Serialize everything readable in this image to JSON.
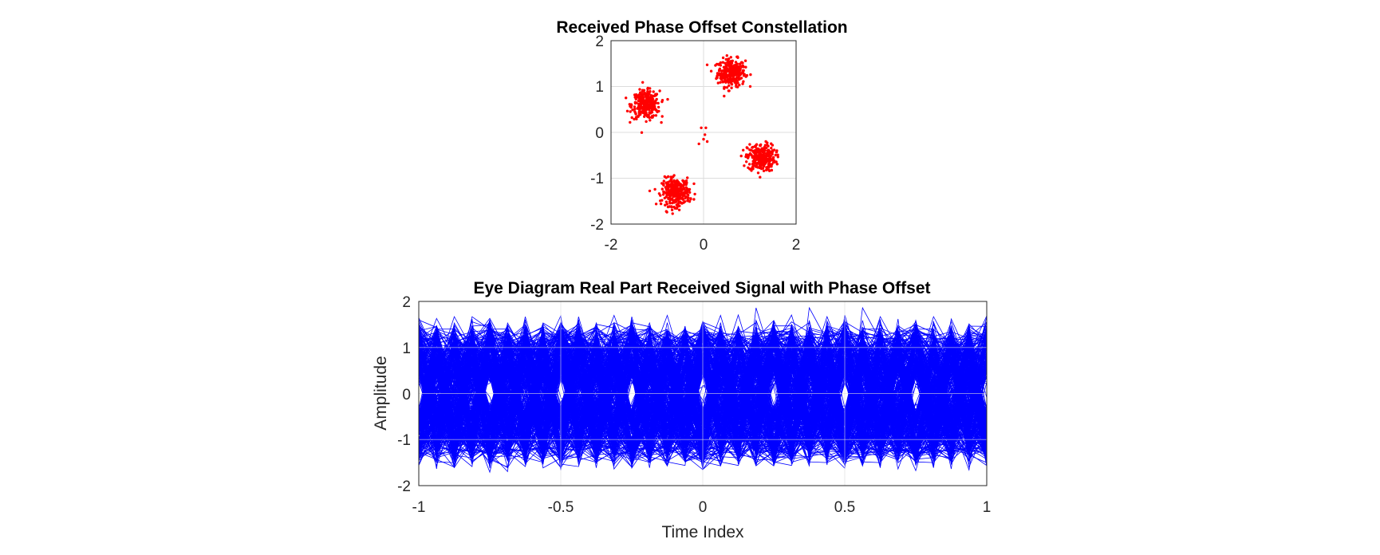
{
  "chart_data": [
    {
      "type": "scatter",
      "title": "Received Phase Offset Constellation",
      "xlabel": "",
      "ylabel": "",
      "xlim": [
        -2,
        2
      ],
      "ylim": [
        -2,
        2
      ],
      "xticks": [
        "-2",
        "0",
        "2"
      ],
      "yticks": [
        "2",
        "1",
        "0",
        "-1",
        "-2"
      ],
      "grid": true,
      "marker_color": "#ff0000",
      "clusters": [
        {
          "center": [
            0.6,
            1.3
          ],
          "spread": 0.15,
          "count": 300
        },
        {
          "center": [
            -1.25,
            0.6
          ],
          "spread": 0.15,
          "count": 300
        },
        {
          "center": [
            1.25,
            -0.55
          ],
          "spread": 0.15,
          "count": 300
        },
        {
          "center": [
            -0.6,
            -1.3
          ],
          "spread": 0.15,
          "count": 300
        }
      ],
      "extra_points": [
        [
          -0.05,
          0.1
        ],
        [
          0.05,
          0.1
        ],
        [
          0.0,
          -0.15
        ],
        [
          -0.1,
          -0.25
        ],
        [
          0.08,
          -0.2
        ],
        [
          0.03,
          -0.05
        ]
      ]
    },
    {
      "type": "line",
      "title": "Eye Diagram Real Part Received Signal with Phase Offset",
      "xlabel": "Time Index",
      "ylabel": "Amplitude",
      "xlim": [
        -1,
        1
      ],
      "ylim": [
        -2,
        2
      ],
      "xticks": [
        "-1",
        "-0.5",
        "0",
        "0.5",
        "1"
      ],
      "yticks": [
        "2",
        "1",
        "0",
        "-1",
        "-2"
      ],
      "grid": true,
      "line_color": "#0000ff",
      "levels": [
        -1.25,
        -0.6,
        0.6,
        1.25
      ],
      "traces": 400
    }
  ]
}
